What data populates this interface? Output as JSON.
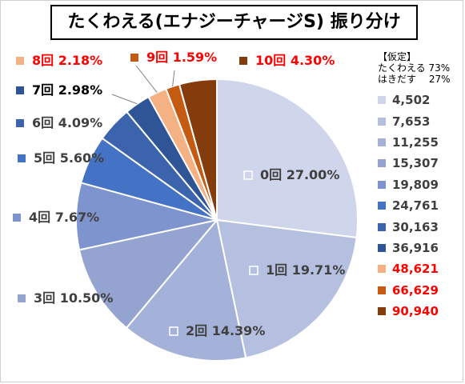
{
  "chart_data": {
    "type": "pie",
    "title": "たくわえる(エナジーチャージS) 振り分け",
    "slices": [
      {
        "label": "0回",
        "value": 27.0,
        "value_label": "27.00%",
        "color": "#cfd5ea",
        "label_color": "#404040",
        "legend_value": "4,502",
        "legend_color": "#404040"
      },
      {
        "label": "1回",
        "value": 19.71,
        "value_label": "19.71%",
        "color": "#b5c0e1",
        "label_color": "#404040",
        "legend_value": "7,653",
        "legend_color": "#404040"
      },
      {
        "label": "2回",
        "value": 14.39,
        "value_label": "14.39%",
        "color": "#a4b1d8",
        "label_color": "#404040",
        "legend_value": "11,255",
        "legend_color": "#404040"
      },
      {
        "label": "3回",
        "value": 10.5,
        "value_label": "10.50%",
        "color": "#95a3d1",
        "label_color": "#404040",
        "legend_value": "15,307",
        "legend_color": "#404040"
      },
      {
        "label": "4回",
        "value": 7.67,
        "value_label": "7.67%",
        "color": "#7e94cf",
        "label_color": "#404040",
        "legend_value": "19,809",
        "legend_color": "#404040"
      },
      {
        "label": "5回",
        "value": 5.6,
        "value_label": "5.60%",
        "color": "#4472c4",
        "label_color": "#404040",
        "legend_value": "24,761",
        "legend_color": "#404040"
      },
      {
        "label": "6回",
        "value": 4.09,
        "value_label": "4.09%",
        "color": "#3b64ad",
        "label_color": "#404040",
        "legend_value": "30,163",
        "legend_color": "#404040"
      },
      {
        "label": "7回",
        "value": 2.98,
        "value_label": "2.98%",
        "color": "#2f5597",
        "label_color": "#000000",
        "legend_value": "36,916",
        "legend_color": "#404040"
      },
      {
        "label": "8回",
        "value": 2.18,
        "value_label": "2.18%",
        "color": "#f4b183",
        "label_color": "#ff0000",
        "legend_value": "48,621",
        "legend_color": "#ff0000"
      },
      {
        "label": "9回",
        "value": 1.59,
        "value_label": "1.59%",
        "color": "#c55a11",
        "label_color": "#ff0000",
        "legend_value": "66,629",
        "legend_color": "#ff0000"
      },
      {
        "label": "10回",
        "value": 4.3,
        "value_label": "4.30%",
        "color": "#843c0c",
        "label_color": "#ff0000",
        "legend_value": "90,940",
        "legend_color": "#ff0000"
      }
    ],
    "legend_note": "【仮定】\nたくわえる 73%\nはきだす 　27%",
    "legend_placement": "right"
  }
}
